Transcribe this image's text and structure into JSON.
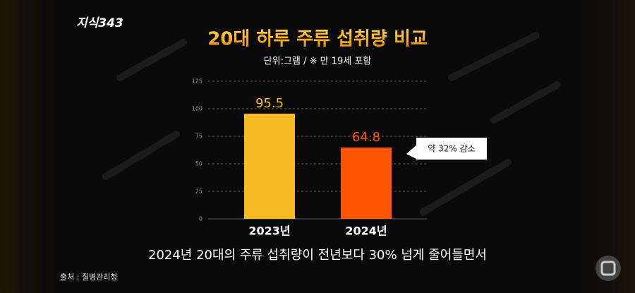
{
  "logo": "지식343",
  "chart_data": {
    "type": "bar",
    "title": "20대 하루 주류 섭취량 비교",
    "subtitle": "단위:그램 / ※ 만 19세 포함",
    "categories": [
      "2023년",
      "2024년"
    ],
    "values": [
      95.5,
      64.8
    ],
    "colors": [
      "#f6bb22",
      "#ff5500"
    ],
    "ylim": [
      0,
      125
    ],
    "yticks": [
      0,
      25,
      50,
      75,
      100,
      125
    ],
    "grid": true,
    "annotation": "약 32% 감소"
  },
  "caption": "2024년 20대의 주류 섭취량이 전년보다 30% 넘게 줄어들면서",
  "source": "출처 : 질병관리청"
}
